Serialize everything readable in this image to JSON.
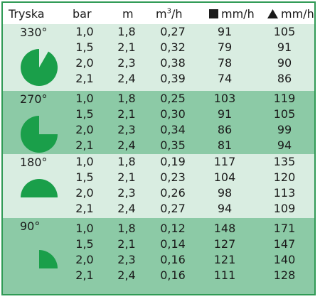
{
  "header": {
    "nozzle": "Tryska",
    "bar": "bar",
    "m": "m",
    "flow_base": "m",
    "flow_sup": "3",
    "flow_tail": "/h",
    "square_rate": "mm/h",
    "triangle_rate": "mm/h"
  },
  "colors": {
    "border": "#2f9a55",
    "light_band": "#d9ede1",
    "dark_band": "#8ccaa6",
    "pie_fill": "#1a9f4a"
  },
  "groups": [
    {
      "angle": "330°",
      "rows": [
        {
          "bar": "1,0",
          "m": "1,8",
          "flow": "0,27",
          "square": "91",
          "triangle": "105"
        },
        {
          "bar": "1,5",
          "m": "2,1",
          "flow": "0,32",
          "square": "79",
          "triangle": "91"
        },
        {
          "bar": "2,0",
          "m": "2,3",
          "flow": "0,38",
          "square": "78",
          "triangle": "90"
        },
        {
          "bar": "2,1",
          "m": "2,4",
          "flow": "0,39",
          "square": "74",
          "triangle": "86"
        }
      ]
    },
    {
      "angle": "270°",
      "rows": [
        {
          "bar": "1,0",
          "m": "1,8",
          "flow": "0,25",
          "square": "103",
          "triangle": "119"
        },
        {
          "bar": "1,5",
          "m": "2,1",
          "flow": "0,30",
          "square": "91",
          "triangle": "105"
        },
        {
          "bar": "2,0",
          "m": "2,3",
          "flow": "0,34",
          "square": "86",
          "triangle": "99"
        },
        {
          "bar": "2,1",
          "m": "2,4",
          "flow": "0,35",
          "square": "81",
          "triangle": "94"
        }
      ]
    },
    {
      "angle": "180°",
      "rows": [
        {
          "bar": "1,0",
          "m": "1,8",
          "flow": "0,19",
          "square": "117",
          "triangle": "135"
        },
        {
          "bar": "1,5",
          "m": "2,1",
          "flow": "0,23",
          "square": "104",
          "triangle": "120"
        },
        {
          "bar": "2,0",
          "m": "2,3",
          "flow": "0,26",
          "square": "98",
          "triangle": "113"
        },
        {
          "bar": "2,1",
          "m": "2,4",
          "flow": "0,27",
          "square": "94",
          "triangle": "109"
        }
      ]
    },
    {
      "angle": "90°",
      "rows": [
        {
          "bar": "1,0",
          "m": "1,8",
          "flow": "0,12",
          "square": "148",
          "triangle": "171"
        },
        {
          "bar": "1,5",
          "m": "2,1",
          "flow": "0,14",
          "square": "127",
          "triangle": "147"
        },
        {
          "bar": "2,0",
          "m": "2,3",
          "flow": "0,16",
          "square": "121",
          "triangle": "140"
        },
        {
          "bar": "2,1",
          "m": "2,4",
          "flow": "0,16",
          "square": "111",
          "triangle": "128"
        }
      ]
    }
  ]
}
